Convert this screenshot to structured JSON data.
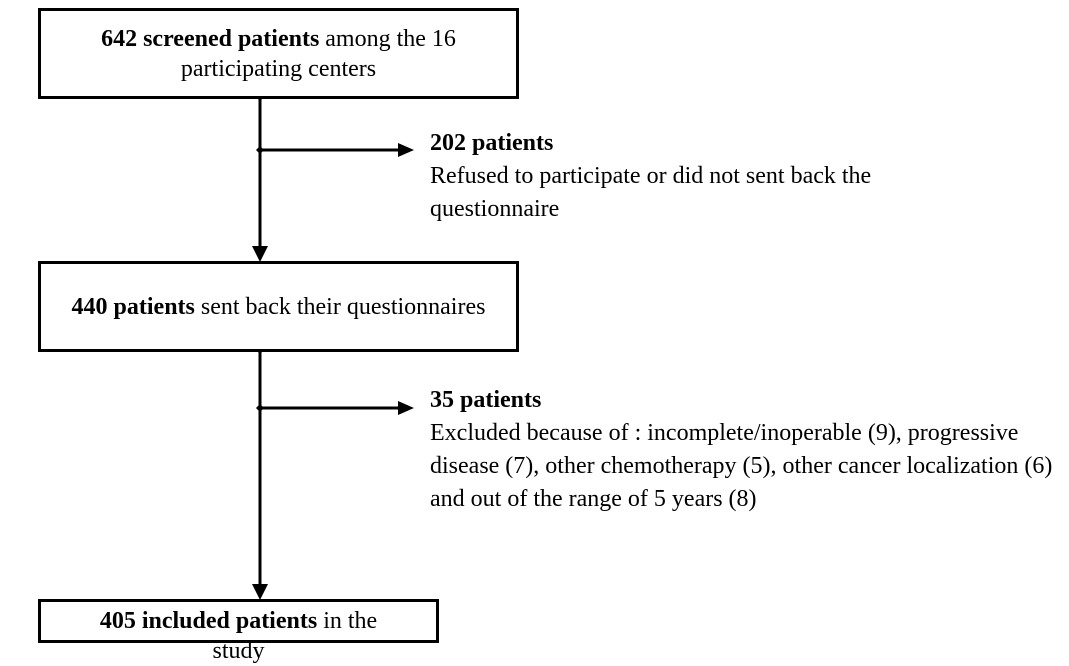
{
  "nodes": [
    {
      "bold": "642 screened patients",
      "text": "among the 16 participating centers"
    },
    {
      "bold": "440 patients",
      "text": "sent back their questionnaires"
    },
    {
      "bold": "405 included patients",
      "text": "in the study"
    }
  ],
  "exclusions": [
    {
      "title": "202 patients",
      "text": "Refused to participate or did not sent back the questionnaire"
    },
    {
      "title": "35 patients",
      "text": "Excluded because of : incomplete/inoperable (9), progressive disease (7), other chemotherapy (5), other cancer localization (6) and out of the range of 5 years (8)"
    }
  ]
}
